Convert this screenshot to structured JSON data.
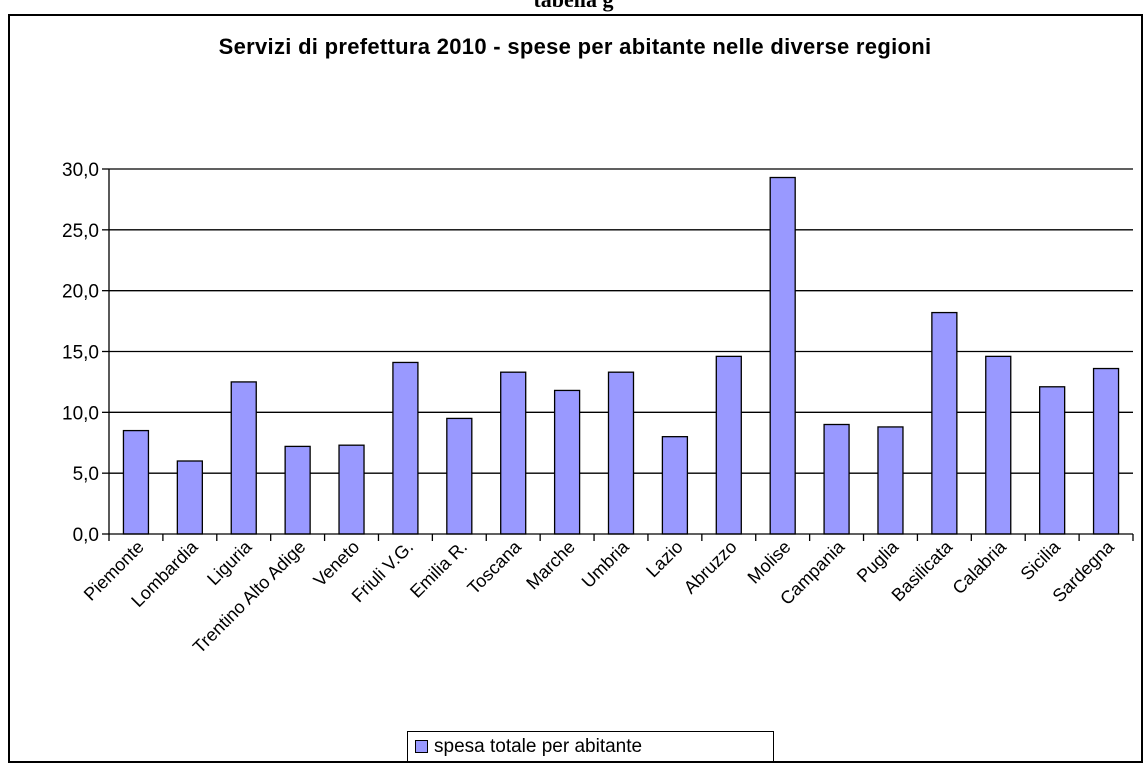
{
  "header": {
    "fragment_text": "tabella g"
  },
  "chart_data": {
    "type": "bar",
    "title": "Servizi di prefettura 2010 - spese per abitante nelle diverse regioni",
    "xlabel": "",
    "ylabel": "",
    "ylim": [
      0,
      30
    ],
    "yticks": [
      "0,0",
      "5,0",
      "10,0",
      "15,0",
      "20,0",
      "25,0",
      "30,0"
    ],
    "grid": true,
    "legend_position": "bottom",
    "categories": [
      "Piemonte",
      "Lombardia",
      "Liguria",
      "Trentino Alto Adige",
      "Veneto",
      "Friuli V.G.",
      "Emilia R.",
      "Toscana",
      "Marche",
      "Umbria",
      "Lazio",
      "Abruzzo",
      "Molise",
      "Campania",
      "Puglia",
      "Basilicata",
      "Calabria",
      "Sicilia",
      "Sardegna"
    ],
    "series": [
      {
        "name": "spesa totale per abitante",
        "color": "#9999ff",
        "values": [
          8.5,
          6.0,
          12.5,
          7.2,
          7.3,
          14.1,
          9.5,
          13.3,
          11.8,
          13.3,
          8.0,
          14.6,
          29.3,
          9.0,
          8.8,
          18.2,
          14.6,
          12.1,
          13.6
        ]
      }
    ]
  }
}
